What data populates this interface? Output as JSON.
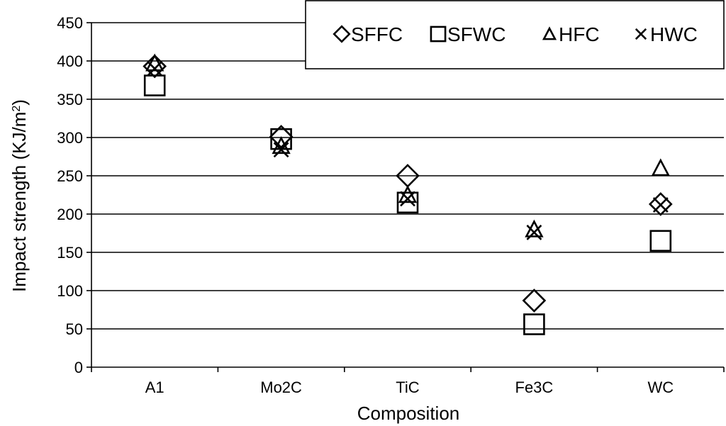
{
  "chart_data": {
    "type": "scatter",
    "title": "",
    "xlabel": "Composition",
    "ylabel_main": "Impact strength (KJ/m",
    "ylabel_sup": "2",
    "ylabel_close": ")",
    "categories": [
      "A1",
      "Mo2C",
      "TiC",
      "Fe3C",
      "WC"
    ],
    "ylim": [
      0,
      450
    ],
    "yticks": [
      0,
      50,
      100,
      150,
      200,
      250,
      300,
      350,
      400,
      450
    ],
    "grid": true,
    "legend_position": "top-right",
    "series": [
      {
        "name": "SFFC",
        "marker": "diamond",
        "values": [
          393,
          301,
          250,
          87,
          213
        ]
      },
      {
        "name": "SFWC",
        "marker": "square",
        "values": [
          368,
          298,
          215,
          56,
          165
        ]
      },
      {
        "name": "HFC",
        "marker": "triangle",
        "values": [
          397,
          289,
          225,
          180,
          260
        ]
      },
      {
        "name": "HWC",
        "marker": "cross",
        "values": [
          390,
          284,
          220,
          176,
          212
        ]
      }
    ]
  }
}
